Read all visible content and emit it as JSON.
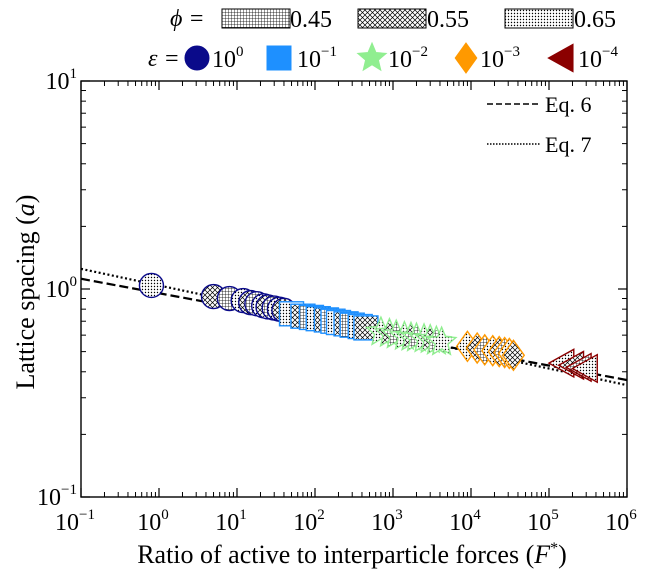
{
  "chart_data": {
    "type": "scatter",
    "xlabel": "Ratio of active to interparticle forces (F*)",
    "ylabel": "Lattice spacing (a)",
    "xscale": "log",
    "yscale": "log",
    "xlim": [
      0.1,
      1000000
    ],
    "ylim": [
      0.1,
      10
    ],
    "x_ticks": [
      {
        "base": "10",
        "exp": "−1"
      },
      {
        "base": "10",
        "exp": "0"
      },
      {
        "base": "10",
        "exp": "1"
      },
      {
        "base": "10",
        "exp": "2"
      },
      {
        "base": "10",
        "exp": "3"
      },
      {
        "base": "10",
        "exp": "4"
      },
      {
        "base": "10",
        "exp": "5"
      },
      {
        "base": "10",
        "exp": "6"
      }
    ],
    "y_ticks": [
      {
        "base": "10",
        "exp": "−1"
      },
      {
        "base": "10",
        "exp": "0"
      },
      {
        "base": "10",
        "exp": "1"
      }
    ],
    "phi_legend": {
      "symbol": "ϕ =",
      "items": [
        {
          "label": "0.45",
          "pattern": "grid"
        },
        {
          "label": "0.55",
          "pattern": "cross"
        },
        {
          "label": "0.65",
          "pattern": "dots"
        }
      ]
    },
    "eps_legend": {
      "symbol": "ε =",
      "items": [
        {
          "base": "10",
          "exp": "0",
          "marker": "circle",
          "color": "#0a0a8a"
        },
        {
          "base": "10",
          "exp": "−1",
          "marker": "square",
          "color": "#1e90ff"
        },
        {
          "base": "10",
          "exp": "−2",
          "marker": "star",
          "color": "#90ee90"
        },
        {
          "base": "10",
          "exp": "−3",
          "marker": "diamond",
          "color": "#ff9900"
        },
        {
          "base": "10",
          "exp": "−4",
          "marker": "triangle-left",
          "color": "#8b0000"
        }
      ]
    },
    "lines": [
      {
        "name": "Eq. 6",
        "style": "dashed",
        "x": [
          0.1,
          1000000
        ],
        "y": [
          1.12,
          0.365
        ]
      },
      {
        "name": "Eq. 7",
        "style": "dotted",
        "x": [
          0.1,
          1000000
        ],
        "y": [
          1.25,
          0.345
        ]
      }
    ],
    "series": [
      {
        "epsilon": "10^0",
        "marker": "circle",
        "color": "#0a0a8a",
        "x": [
          0.8,
          5,
          8,
          12,
          15,
          18,
          22,
          25,
          30,
          35,
          40
        ],
        "y": [
          1.04,
          0.92,
          0.9,
          0.88,
          0.86,
          0.85,
          0.83,
          0.82,
          0.81,
          0.8,
          0.79
        ]
      },
      {
        "epsilon": "10^-1",
        "marker": "square",
        "color": "#1e90ff",
        "x": [
          50,
          70,
          90,
          110,
          140,
          170,
          200,
          250,
          300,
          380,
          450
        ],
        "y": [
          0.76,
          0.74,
          0.73,
          0.72,
          0.71,
          0.7,
          0.69,
          0.68,
          0.67,
          0.66,
          0.65
        ]
      },
      {
        "epsilon": "10^-2",
        "marker": "star",
        "color": "#90ee90",
        "x": [
          700,
          900,
          1100,
          1400,
          1700,
          2000,
          2500,
          3000,
          3600,
          4200
        ],
        "y": [
          0.62,
          0.61,
          0.6,
          0.59,
          0.585,
          0.58,
          0.575,
          0.57,
          0.56,
          0.555
        ]
      },
      {
        "epsilon": "10^-3",
        "marker": "diamond",
        "color": "#ff9900",
        "x": [
          9000,
          12000,
          15000,
          19000,
          23000,
          27000,
          31000,
          35000
        ],
        "y": [
          0.53,
          0.52,
          0.51,
          0.505,
          0.5,
          0.495,
          0.49,
          0.48
        ]
      },
      {
        "epsilon": "10^-4",
        "marker": "triangle-left",
        "color": "#8b0000",
        "x": [
          150000,
          200000,
          250000,
          300000
        ],
        "y": [
          0.44,
          0.43,
          0.42,
          0.415
        ]
      }
    ]
  }
}
